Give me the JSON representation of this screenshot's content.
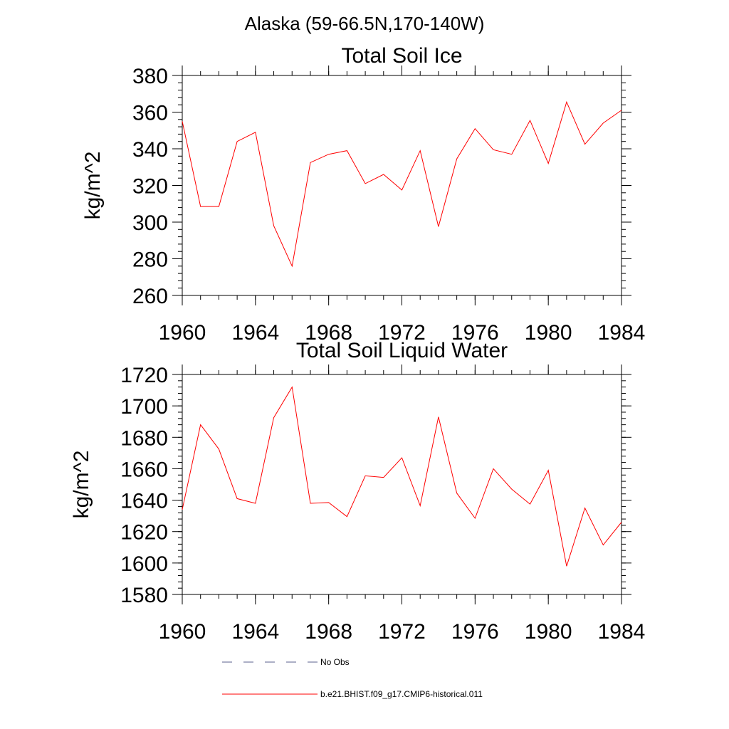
{
  "figure": {
    "suptitle": "Alaska (59-66.5N,170-140W)"
  },
  "chart_data": [
    {
      "type": "line",
      "title": "Total Soil Ice",
      "xlabel": "",
      "ylabel": "kg/m^2",
      "xlim": [
        1960,
        1984
      ],
      "ylim": [
        260,
        380
      ],
      "x_ticks": [
        1960,
        1964,
        1968,
        1972,
        1976,
        1980,
        1984
      ],
      "x_minor_step": 1,
      "y_ticks": [
        260,
        280,
        300,
        320,
        340,
        360,
        380
      ],
      "y_minor_step": 4,
      "grid": false,
      "series": [
        {
          "name": "b.e21.BHIST.f09_g17.CMIP6-historical.011",
          "color": "#ff0000",
          "x": [
            1960,
            1961,
            1962,
            1963,
            1964,
            1965,
            1966,
            1967,
            1968,
            1969,
            1970,
            1971,
            1972,
            1973,
            1974,
            1975,
            1976,
            1977,
            1978,
            1979,
            1980,
            1981,
            1982,
            1983,
            1984
          ],
          "y": [
            355,
            308.5,
            308.5,
            344,
            349,
            298,
            276,
            332.5,
            337,
            339,
            321,
            326,
            317.5,
            339,
            297.5,
            334.5,
            351,
            339.5,
            337,
            355.5,
            332,
            365.5,
            342.5,
            354,
            361
          ]
        }
      ]
    },
    {
      "type": "line",
      "title": "Total Soil Liquid Water",
      "xlabel": "",
      "ylabel": "kg/m^2",
      "xlim": [
        1960,
        1984
      ],
      "ylim": [
        1580,
        1720
      ],
      "x_ticks": [
        1960,
        1964,
        1968,
        1972,
        1976,
        1980,
        1984
      ],
      "x_minor_step": 1,
      "y_ticks": [
        1580,
        1600,
        1620,
        1640,
        1660,
        1680,
        1700,
        1720
      ],
      "y_minor_step": 4,
      "grid": false,
      "series": [
        {
          "name": "b.e21.BHIST.f09_g17.CMIP6-historical.011",
          "color": "#ff0000",
          "x": [
            1960,
            1961,
            1962,
            1963,
            1964,
            1965,
            1966,
            1967,
            1968,
            1969,
            1970,
            1971,
            1972,
            1973,
            1974,
            1975,
            1976,
            1977,
            1978,
            1979,
            1980,
            1981,
            1982,
            1983,
            1984
          ],
          "y": [
            1634,
            1688,
            1672.5,
            1641,
            1638,
            1692.5,
            1712,
            1638,
            1638.5,
            1629.5,
            1655.5,
            1654.5,
            1667,
            1636.5,
            1693,
            1644.5,
            1628.5,
            1660,
            1647,
            1637.5,
            1659,
            1598,
            1635,
            1611.5,
            1626
          ]
        }
      ]
    }
  ],
  "legend": {
    "placement": "bottom",
    "entries": [
      {
        "label": "No Obs",
        "style": "dashed",
        "color": "#5a5f8c"
      },
      {
        "label": "b.e21.BHIST.f09_g17.CMIP6-historical.011",
        "style": "solid",
        "color": "#ff0000"
      }
    ]
  }
}
